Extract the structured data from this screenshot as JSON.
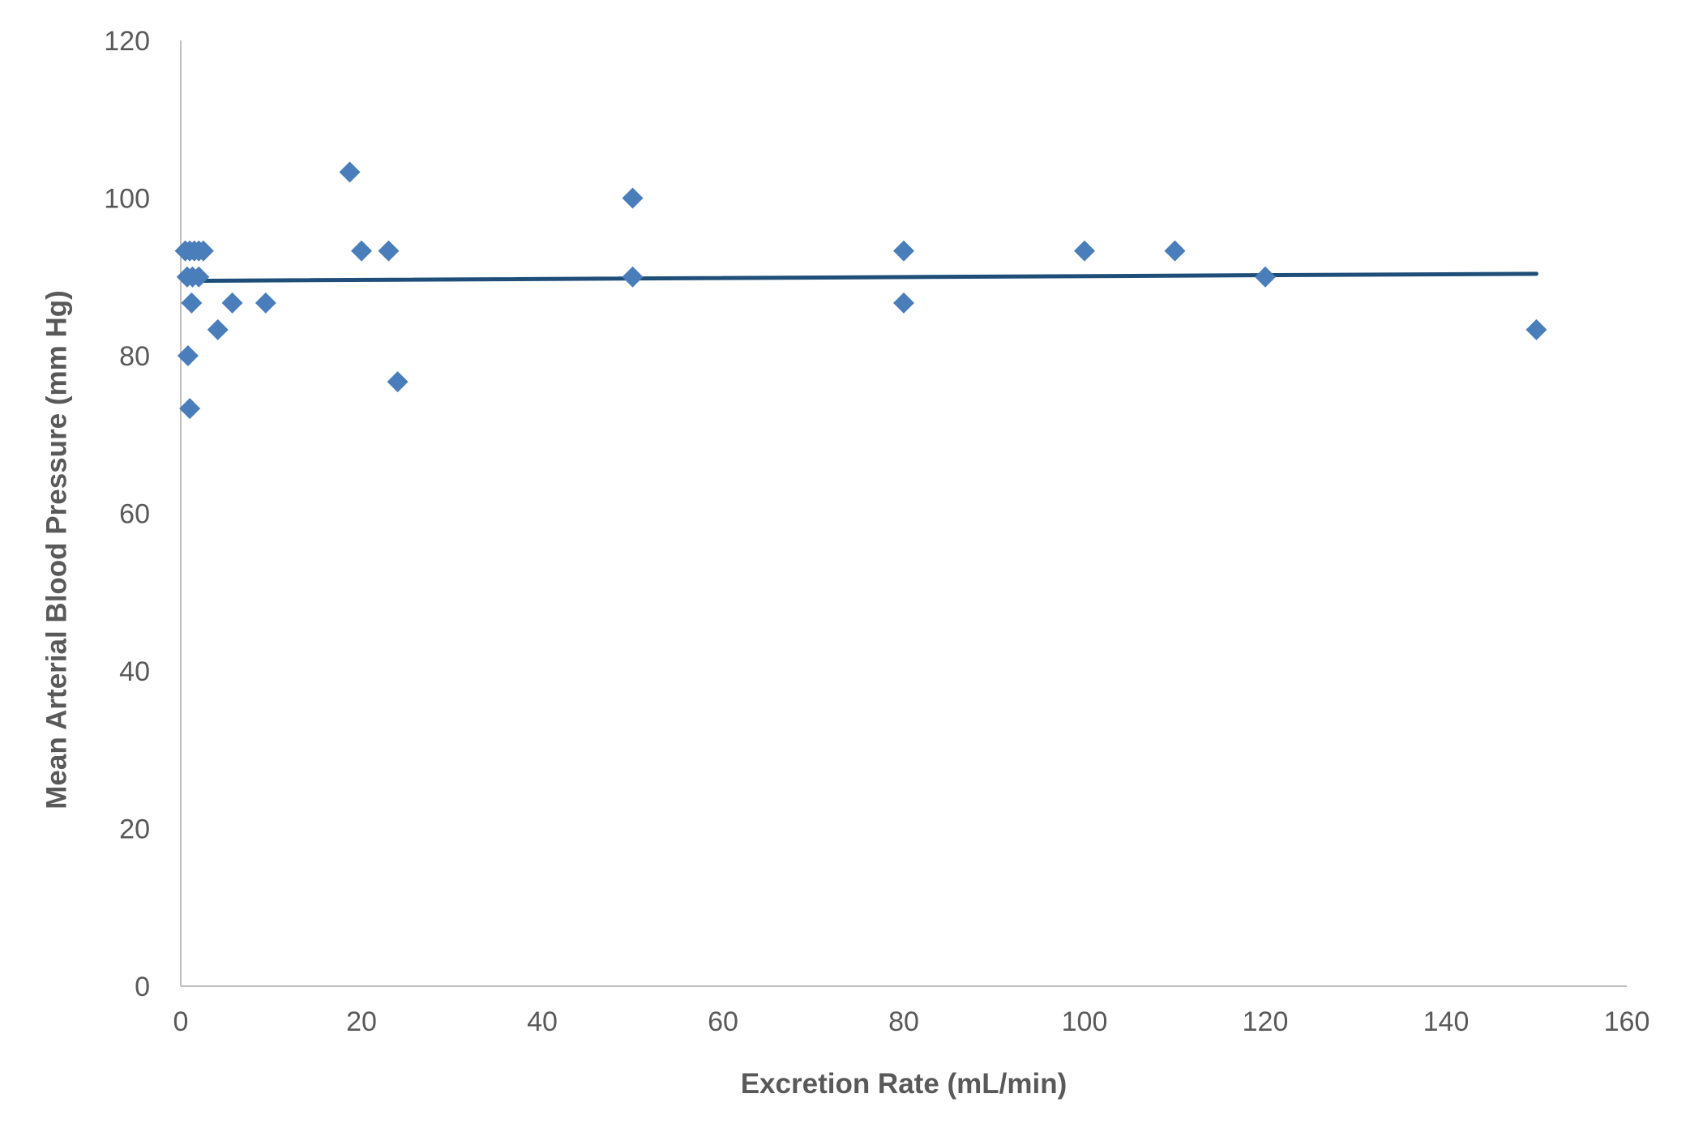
{
  "chart_data": {
    "type": "scatter",
    "xlabel": "Excretion Rate (mL/min)",
    "ylabel": "Mean Arterial Blood Pressure (mm Hg)",
    "xlim": [
      0,
      160
    ],
    "ylim": [
      0,
      120
    ],
    "x_ticks": [
      "0",
      "20",
      "40",
      "60",
      "80",
      "100",
      "120",
      "140",
      "160"
    ],
    "y_ticks": [
      "0",
      "20",
      "40",
      "60",
      "80",
      "100",
      "120"
    ],
    "grid": false,
    "legend": "none",
    "marker": "diamond",
    "colors": {
      "points": "#4a7ebb",
      "trendline": "#1f4e79",
      "axis": "#bfbfbf",
      "text": "#595959"
    },
    "series": [
      {
        "points": [
          [
            0.5,
            93.3
          ],
          [
            1.0,
            93.3
          ],
          [
            1.5,
            93.3
          ],
          [
            2.0,
            93.3
          ],
          [
            2.5,
            93.3
          ],
          [
            0.7,
            90
          ],
          [
            1.3,
            90
          ],
          [
            2.0,
            90
          ],
          [
            1.2,
            86.7
          ],
          [
            5.7,
            86.7
          ],
          [
            9.4,
            86.7
          ],
          [
            4.1,
            83.3
          ],
          [
            0.8,
            80
          ],
          [
            1.0,
            73.3
          ],
          [
            18.7,
            103.3
          ],
          [
            20,
            93.3
          ],
          [
            23,
            93.3
          ],
          [
            24,
            76.7
          ],
          [
            50,
            100
          ],
          [
            50,
            90
          ],
          [
            80,
            93.3
          ],
          [
            80,
            86.7
          ],
          [
            100,
            93.3
          ],
          [
            110,
            93.3
          ],
          [
            120,
            90
          ],
          [
            150,
            83.3
          ]
        ]
      }
    ],
    "trendline": {
      "type": "linear",
      "x": [
        0.5,
        150
      ],
      "y": [
        89.5,
        90.4
      ]
    }
  }
}
